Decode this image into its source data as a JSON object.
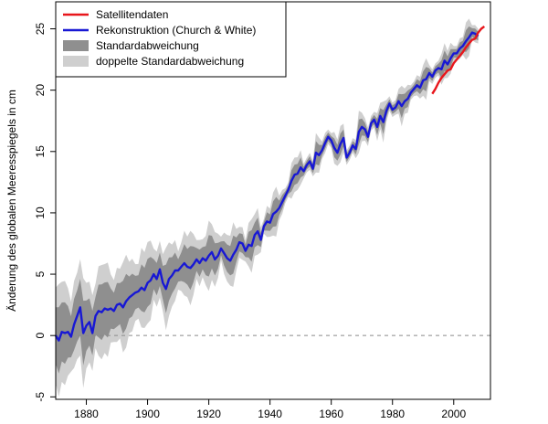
{
  "chart_data": {
    "type": "line",
    "title": "",
    "xlabel": "",
    "ylabel": "Änderung des globalen Meeresspiegels in cm",
    "xlim": [
      1870,
      2012
    ],
    "ylim": [
      -5.2,
      27.2
    ],
    "xticks": [
      1880,
      1900,
      1920,
      1940,
      1960,
      1980,
      2000
    ],
    "yticks": [
      -5,
      0,
      5,
      10,
      15,
      20,
      25
    ],
    "grid": false,
    "reference_line": {
      "y": 0,
      "style": "dashed"
    },
    "legend": {
      "position": "top-left",
      "entries": [
        {
          "label": "Satellitendaten",
          "color": "#e8161b",
          "kind": "line"
        },
        {
          "label": "Rekonstruktion (Church & White)",
          "color": "#1818d4",
          "kind": "line"
        },
        {
          "label": "Standardabweichung",
          "color": "#8f8f8f",
          "kind": "box"
        },
        {
          "label": "doppelte Standardabweichung",
          "color": "#cfcfcf",
          "kind": "box"
        }
      ]
    },
    "series": [
      {
        "name": "Rekonstruktion (Church & White)",
        "color": "#1818d4",
        "x": [
          1870,
          1871,
          1872,
          1873,
          1874,
          1875,
          1876,
          1877,
          1878,
          1879,
          1880,
          1881,
          1882,
          1883,
          1884,
          1885,
          1886,
          1887,
          1888,
          1889,
          1890,
          1891,
          1892,
          1893,
          1894,
          1895,
          1896,
          1897,
          1898,
          1899,
          1900,
          1901,
          1902,
          1903,
          1904,
          1905,
          1906,
          1907,
          1908,
          1909,
          1910,
          1911,
          1912,
          1913,
          1914,
          1915,
          1916,
          1917,
          1918,
          1919,
          1920,
          1921,
          1922,
          1923,
          1924,
          1925,
          1926,
          1927,
          1928,
          1929,
          1930,
          1931,
          1932,
          1933,
          1934,
          1935,
          1936,
          1937,
          1938,
          1939,
          1940,
          1941,
          1942,
          1943,
          1944,
          1945,
          1946,
          1947,
          1948,
          1949,
          1950,
          1951,
          1952,
          1953,
          1954,
          1955,
          1956,
          1957,
          1958,
          1959,
          1960,
          1961,
          1962,
          1963,
          1964,
          1965,
          1966,
          1967,
          1968,
          1969,
          1970,
          1971,
          1972,
          1973,
          1974,
          1975,
          1976,
          1977,
          1978,
          1979,
          1980,
          1981,
          1982,
          1983,
          1984,
          1985,
          1986,
          1987,
          1988,
          1989,
          1990,
          1991,
          1992,
          1993,
          1994,
          1995,
          1996,
          1997,
          1998,
          1999,
          2000,
          2001,
          2002,
          2003,
          2004,
          2005,
          2006,
          2007,
          2008
        ],
        "values": [
          0,
          -0.4,
          0.3,
          0.2,
          0.3,
          -0.1,
          0.9,
          1.6,
          2.3,
          0.2,
          0.8,
          1.1,
          0.2,
          1.6,
          2.0,
          1.9,
          2.2,
          2.1,
          2.2,
          2.0,
          2.5,
          2.6,
          2.3,
          2.8,
          3.1,
          3.3,
          3.5,
          3.6,
          3.9,
          3.7,
          4.3,
          4.5,
          5.0,
          4.6,
          5.4,
          4.3,
          3.8,
          4.6,
          4.9,
          5.3,
          5.3,
          5.6,
          5.9,
          5.6,
          5.5,
          5.8,
          6.2,
          5.9,
          6.3,
          6.1,
          6.5,
          6.8,
          6.2,
          6.5,
          7.1,
          6.7,
          6.3,
          6.1,
          6.6,
          7.0,
          7.6,
          7.5,
          6.9,
          7.4,
          7.3,
          8.2,
          8.5,
          7.8,
          8.9,
          9.3,
          9.2,
          9.9,
          10.1,
          10.4,
          10.9,
          11.4,
          11.9,
          12.6,
          13.1,
          13.2,
          13.7,
          13.4,
          13.9,
          14.2,
          13.6,
          14.9,
          14.7,
          15.1,
          15.7,
          16.2,
          15.9,
          15.3,
          14.9,
          15.6,
          16.1,
          14.5,
          14.9,
          15.5,
          15.2,
          16.6,
          17.0,
          16.8,
          16.2,
          17.3,
          17.6,
          17.0,
          17.9,
          17.4,
          18.3,
          18.9,
          18.4,
          18.6,
          19.1,
          18.7,
          19.1,
          19.3,
          19.8,
          20.1,
          20.4,
          20.2,
          20.8,
          20.9,
          21.4,
          21.1,
          21.6,
          21.8,
          21.7,
          22.4,
          22.1,
          22.6,
          23.0,
          23.0,
          23.4,
          23.6,
          24.0,
          24.3,
          24.7,
          24.6,
          24.4
        ]
      },
      {
        "name": "Satellitendaten",
        "color": "#e8161b",
        "x": [
          1993,
          1994,
          1995,
          1996,
          1997,
          1998,
          1999,
          2000,
          2001,
          2002,
          2003,
          2004,
          2005,
          2006,
          2007,
          2008,
          2009,
          2010
        ],
        "values": [
          19.7,
          20.1,
          20.6,
          21.0,
          21.3,
          21.6,
          21.7,
          22.2,
          22.5,
          22.8,
          23.1,
          23.5,
          23.8,
          24.1,
          24.2,
          24.7,
          25.0,
          25.2
        ]
      }
    ],
    "bands": [
      {
        "name": "Standardabweichung",
        "color": "#8f8f8f",
        "sd_multiple": 1
      },
      {
        "name": "doppelte Standardabweichung",
        "color": "#cfcfcf",
        "sd_multiple": 2
      }
    ]
  }
}
